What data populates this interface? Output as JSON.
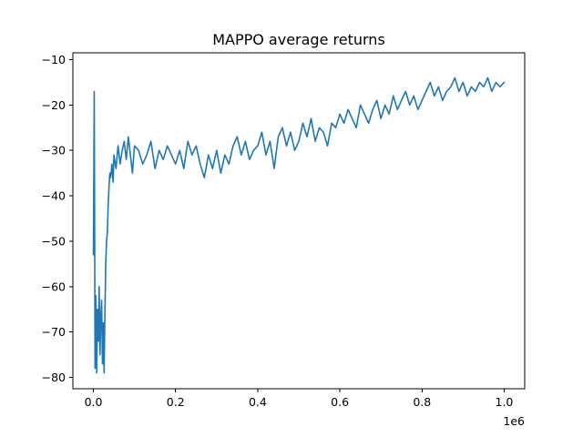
{
  "chart_data": {
    "type": "line",
    "title": "MAPPO average returns",
    "xlabel": "",
    "ylabel": "",
    "x_offset_label": "1e6",
    "xlim": [
      -0.05,
      1.05
    ],
    "ylim": [
      -82.5,
      -8.5
    ],
    "x_ticks": [
      0.0,
      0.2,
      0.4,
      0.6,
      0.8,
      1.0
    ],
    "x_tick_labels": [
      "0.0",
      "0.2",
      "0.4",
      "0.6",
      "0.8",
      "1.0"
    ],
    "y_ticks": [
      -80,
      -70,
      -60,
      -50,
      -40,
      -30,
      -20,
      -10
    ],
    "y_tick_labels": [
      "−80",
      "−70",
      "−60",
      "−50",
      "−40",
      "−30",
      "−20",
      "−10"
    ],
    "grid": false,
    "series": [
      {
        "name": "",
        "color": "#1f77b4",
        "x": [
          0.0,
          0.002,
          0.004,
          0.006,
          0.008,
          0.01,
          0.012,
          0.014,
          0.016,
          0.018,
          0.02,
          0.022,
          0.024,
          0.026,
          0.028,
          0.03,
          0.032,
          0.034,
          0.036,
          0.038,
          0.04,
          0.042,
          0.045,
          0.048,
          0.05,
          0.055,
          0.06,
          0.065,
          0.07,
          0.075,
          0.08,
          0.085,
          0.09,
          0.095,
          0.1,
          0.11,
          0.12,
          0.13,
          0.14,
          0.15,
          0.16,
          0.17,
          0.18,
          0.19,
          0.2,
          0.21,
          0.22,
          0.23,
          0.24,
          0.25,
          0.26,
          0.27,
          0.28,
          0.29,
          0.3,
          0.31,
          0.32,
          0.33,
          0.34,
          0.35,
          0.36,
          0.37,
          0.38,
          0.39,
          0.4,
          0.41,
          0.42,
          0.43,
          0.44,
          0.45,
          0.46,
          0.47,
          0.48,
          0.49,
          0.5,
          0.51,
          0.52,
          0.53,
          0.54,
          0.55,
          0.56,
          0.57,
          0.58,
          0.59,
          0.6,
          0.61,
          0.62,
          0.63,
          0.64,
          0.65,
          0.66,
          0.67,
          0.68,
          0.69,
          0.7,
          0.71,
          0.72,
          0.73,
          0.74,
          0.75,
          0.76,
          0.77,
          0.78,
          0.79,
          0.8,
          0.81,
          0.82,
          0.83,
          0.84,
          0.85,
          0.86,
          0.87,
          0.88,
          0.89,
          0.9,
          0.91,
          0.92,
          0.93,
          0.94,
          0.95,
          0.96,
          0.97,
          0.98,
          0.99,
          1.0
        ],
        "y": [
          -53,
          -17,
          -78,
          -62,
          -79,
          -65,
          -72,
          -60,
          -75,
          -67,
          -63,
          -77,
          -68,
          -79,
          -66,
          -55,
          -50,
          -48,
          -42,
          -38,
          -35,
          -36,
          -33,
          -37,
          -31,
          -34,
          -29,
          -33,
          -30,
          -28,
          -32,
          -27,
          -31,
          -35,
          -29,
          -30,
          -33,
          -31,
          -28,
          -34,
          -30,
          -32,
          -29,
          -31,
          -33,
          -30,
          -34,
          -28,
          -31,
          -29,
          -33,
          -36,
          -31,
          -34,
          -30,
          -35,
          -31,
          -33,
          -29,
          -27,
          -31,
          -28,
          -32,
          -30,
          -29,
          -26,
          -31,
          -28,
          -34,
          -27,
          -25,
          -29,
          -26,
          -30,
          -28,
          -24,
          -27,
          -23,
          -28,
          -25,
          -26,
          -29,
          -24,
          -25,
          -22,
          -24,
          -21,
          -23,
          -25,
          -20,
          -22,
          -24,
          -21,
          -19,
          -23,
          -20,
          -22,
          -18,
          -21,
          -19,
          -17,
          -20,
          -18,
          -21,
          -19,
          -17,
          -15,
          -18,
          -16,
          -19,
          -17,
          -16,
          -14,
          -17,
          -15,
          -18,
          -16,
          -17,
          -15,
          -16,
          -14,
          -17,
          -15,
          -16,
          -15
        ]
      }
    ]
  }
}
